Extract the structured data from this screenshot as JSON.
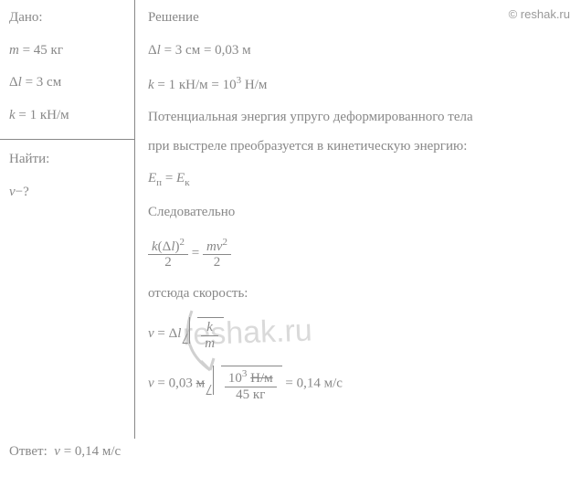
{
  "watermark": {
    "text_top": "© reshak.ru",
    "text_center": "reshak.ru"
  },
  "given": {
    "title": "Дано:",
    "items": [
      {
        "html": "<span class='italic'>m</span> = 45 кг"
      },
      {
        "html": "Δ<span class='italic'>l</span> = 3 см"
      },
      {
        "html": "<span class='italic'>k</span> = 1 кН/м"
      }
    ],
    "find_title": "Найти:",
    "find": "<span class='italic'>v</span>−?"
  },
  "solution": {
    "title": "Решение",
    "lines": [
      {
        "html": "Δ<span class='italic'>l</span> = 3 см = 0,03 м"
      },
      {
        "html": "<span class='italic'>k</span> = 1 кН/м = 10<span class='sup'>3</span> Н/м"
      },
      {
        "html": "Потенциальная энергия упруго деформированного тела"
      },
      {
        "html": "при выстреле преобразуется в кинетическую энергию:"
      },
      {
        "html": "<span class='italic'>E</span><span class='sub'>п</span> = <span class='italic'>E</span><span class='sub'>к</span>"
      },
      {
        "html": "Следовательно"
      },
      {
        "html": "<span class='frac'><span class='num'><span class='italic'>k</span>(Δ<span class='italic'>l</span>)<span class='sup'>2</span></span><span class='den'>2</span></span> = <span class='frac'><span class='num'><span class='italic'>mv</span><span class='sup'>2</span></span><span class='den'>2</span></span>"
      },
      {
        "html": "отсюда скорость:"
      },
      {
        "html": "<span class='italic'>v</span> = Δ<span class='italic'>l</span> <span class='sqrt-wrap'><span class='sqrt-sign'></span><span class='sqrt-body'><span class='frac'><span class='num'><span class='italic'>k</span></span><span class='den'><span class='italic'>m</span></span></span></span></span>"
      },
      {
        "html": "<span class='italic'>v</span> = 0,03 <span class='strike'>м</span> <span class='sqrt-wrap'><span class='sqrt-sign'></span><span class='sqrt-body'><span class='frac'><span class='num'>10<span class='sup'>3</span> <span class='strike'>Н/м</span></span><span class='den'>45 кг</span></span></span></span> = 0,14 м/с"
      }
    ]
  },
  "answer": {
    "label": "Ответ:",
    "value": "<span class='italic'>v</span> = 0,14 м/с"
  },
  "colors": {
    "bg": "#ffffff",
    "text": "#888888",
    "border": "#888888"
  }
}
